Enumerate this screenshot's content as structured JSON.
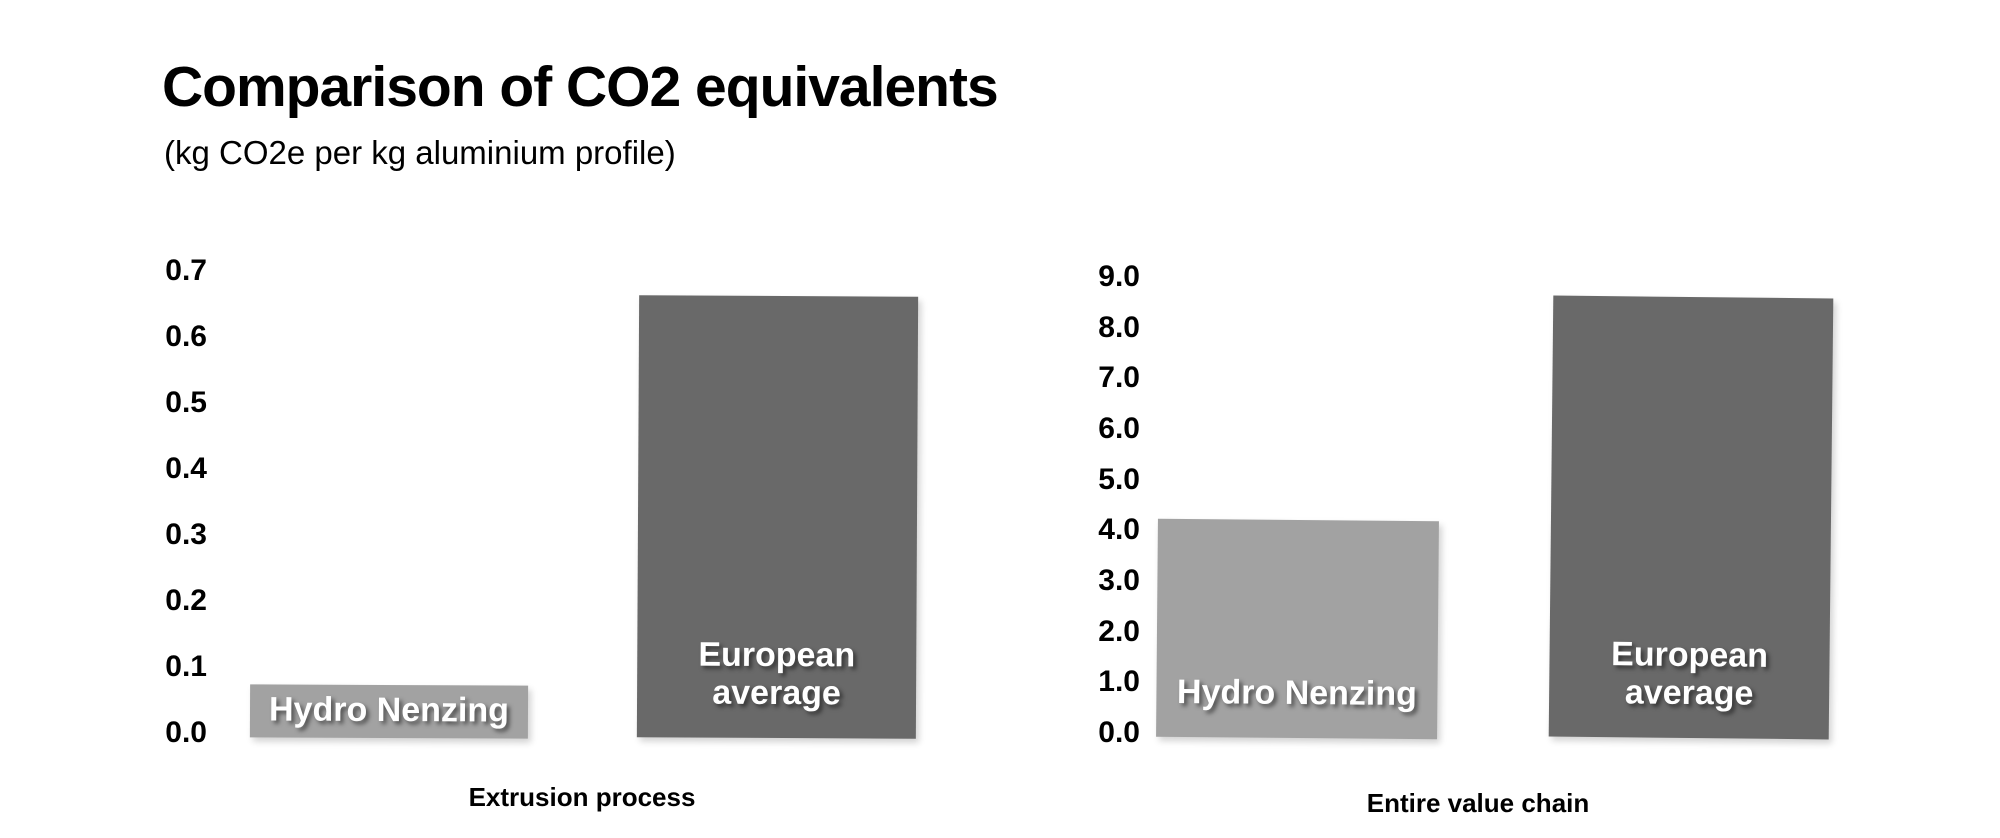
{
  "page": {
    "title": "Comparison of CO2 equivalents",
    "subtitle": "(kg CO2e per kg aluminium profile)"
  },
  "colors": {
    "background": "#ffffff",
    "text": "#000000",
    "hydro_bar": "#a2a2a2",
    "european_bar": "#696969",
    "bar_label_text": "#ffffff"
  },
  "chart_data": [
    {
      "type": "bar",
      "title": "Extrusion process",
      "xlabel": "Extrusion process",
      "ylabel": "",
      "categories": [
        "Hydro Nenzing",
        "European average"
      ],
      "values": [
        0.08,
        0.67
      ],
      "bar_colors": [
        "#a2a2a2",
        "#696969"
      ],
      "yticks": [
        "0.7",
        "0.6",
        "0.5",
        "0.4",
        "0.3",
        "0.2",
        "0.1",
        "0.0"
      ],
      "ylim": [
        0.0,
        0.7
      ],
      "grid": false,
      "legend": "none"
    },
    {
      "type": "bar",
      "title": "Entire value chain",
      "xlabel": "Entire value chain",
      "ylabel": "",
      "categories": [
        "Hydro Nenzing",
        "European average"
      ],
      "values": [
        4.3,
        8.7
      ],
      "bar_colors": [
        "#a2a2a2",
        "#696969"
      ],
      "yticks": [
        "9.0",
        "8.0",
        "7.0",
        "6.0",
        "5.0",
        "4.0",
        "3.0",
        "2.0",
        "1.0",
        "0.0"
      ],
      "ylim": [
        0.0,
        9.0
      ],
      "grid": false,
      "legend": "none"
    }
  ]
}
